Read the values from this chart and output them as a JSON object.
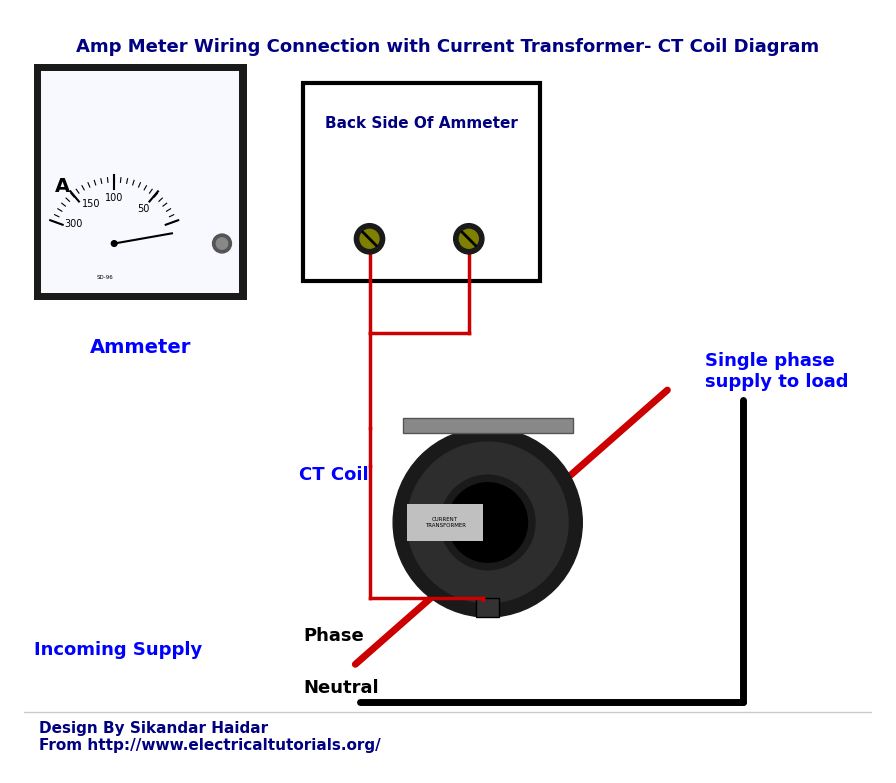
{
  "title": "Amp Meter Wiring Connection with Current Transformer- CT Coil Diagram",
  "title_color": "#000080",
  "title_fontsize": 13,
  "bg_color": "#ffffff",
  "ammeter_label": "Ammeter",
  "ammeter_label_color": "#0000ff",
  "back_side_label": "Back Side Of Ammeter",
  "back_side_label_color": "#000080",
  "ct_coil_label": "CT Coil",
  "ct_coil_label_color": "#0000ff",
  "phase_label": "Phase",
  "phase_label_color": "#000000",
  "neutral_label": "Neutral",
  "neutral_label_color": "#000000",
  "incoming_label": "Incoming Supply",
  "incoming_label_color": "#0000ff",
  "single_phase_label": "Single phase\nsupply to load",
  "single_phase_label_color": "#0000ff",
  "footer1": "Design By Sikandar Haidar",
  "footer2": "From http://www.electricaltutorials.org/",
  "footer_color": "#000080",
  "wire_red_color": "#cc0000",
  "wire_black_color": "#000000",
  "wire_red_phase_color": "#cc0000",
  "terminal_outer_color": "#1a1a1a",
  "terminal_inner_color": "#808000",
  "ammeter_box_outer": "#1a1a1a",
  "ammeter_box_inner": "#f0f0f0",
  "back_box_color": "#000000",
  "back_box_fill": "#ffffff",
  "ct_outer_color": "#1a1a1a",
  "ct_inner_color": "#333333"
}
